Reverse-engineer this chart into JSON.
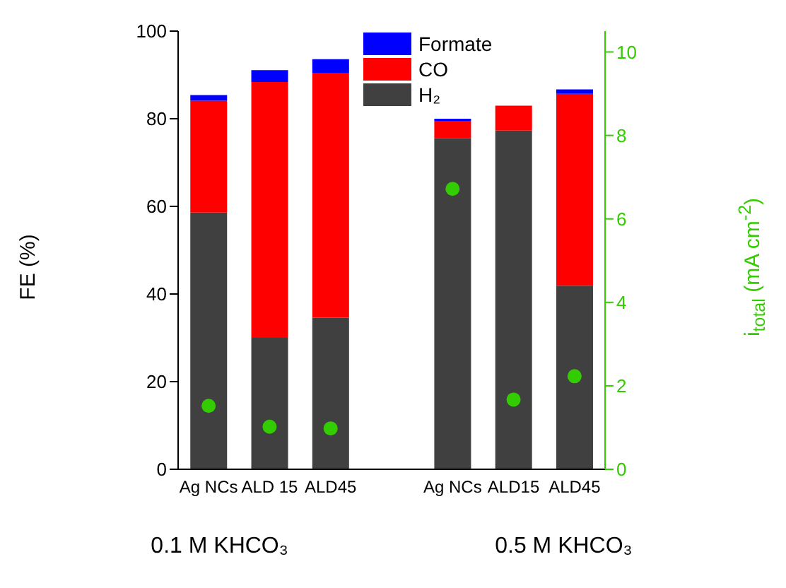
{
  "chart_data": {
    "type": "bar",
    "stacked": true,
    "ylabel": "FE (%)",
    "y2label": "i$_{total}$ (mA cm$^{-2}$)",
    "categories": [
      "Ag NCs",
      "ALD 15",
      "ALD45",
      null,
      "Ag NCs",
      "ALD15",
      "ALD45"
    ],
    "series": [
      {
        "name": "H₂",
        "color": "#404040",
        "values": [
          58.6,
          30,
          34.6,
          null,
          75.6,
          77.3,
          41.9
        ]
      },
      {
        "name": "CO",
        "color": "#ff0000",
        "values": [
          25.5,
          58.4,
          55.9,
          null,
          3.9,
          5.7,
          43.8
        ]
      },
      {
        "name": "Formate",
        "color": "#0000ff",
        "values": [
          1.3,
          2.7,
          3.1,
          null,
          0.5,
          0,
          1.0
        ]
      },
      {
        "type": "scatter",
        "axis": "y2",
        "color": "#33cc00",
        "values": [
          1.52,
          1.02,
          0.98,
          null,
          6.72,
          1.67,
          2.23
        ]
      }
    ],
    "ylim": [
      0,
      100
    ],
    "yticks": [
      0,
      20,
      40,
      60,
      80,
      100
    ],
    "y2lim": [
      0,
      10.5
    ],
    "y2ticks": [
      0,
      2,
      4,
      6,
      8,
      10
    ],
    "annotations": [
      "0.1 M KHCO₃",
      "0.5 M KHCO₃"
    ],
    "legend": "top",
    "marker": "circle",
    "grid": false
  }
}
